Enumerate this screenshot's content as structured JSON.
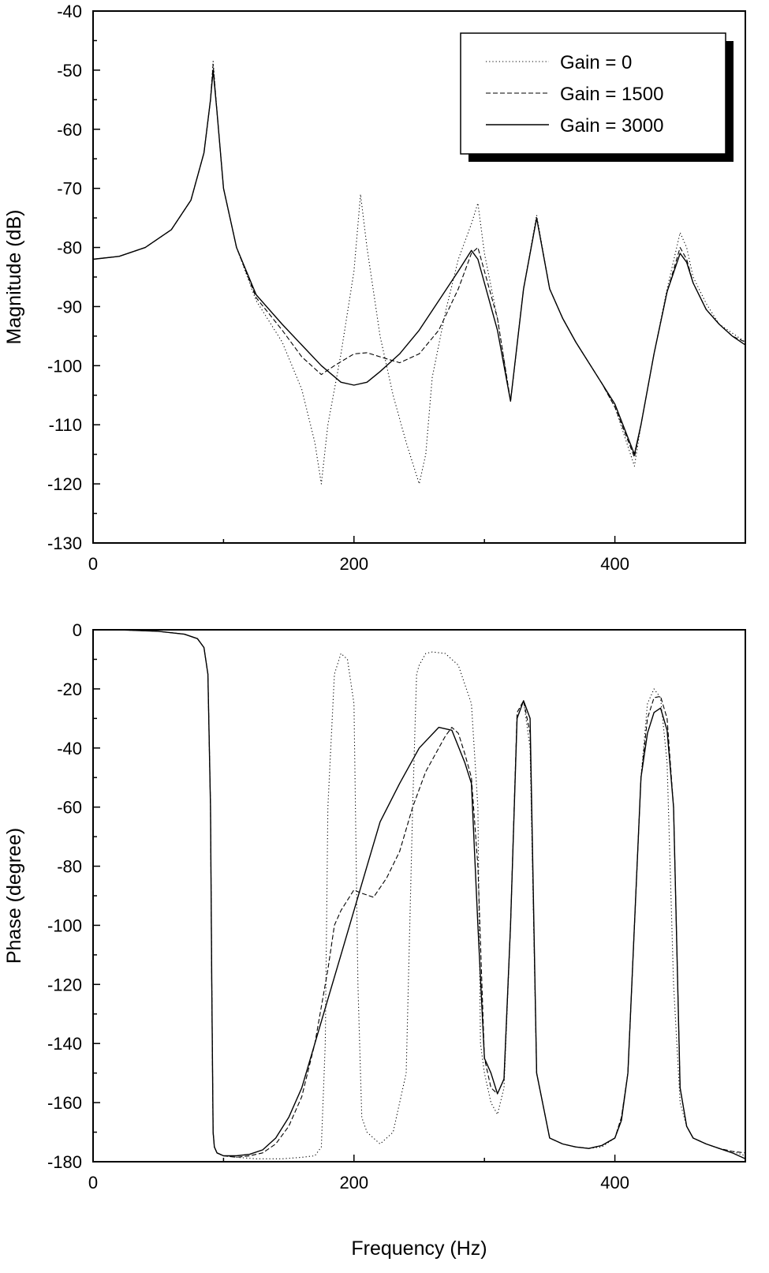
{
  "chart_data": [
    {
      "type": "line",
      "title": "",
      "xlabel": "",
      "ylabel": "Magnitude (dB)",
      "xlim": [
        0,
        500
      ],
      "ylim": [
        -130,
        -40
      ],
      "xticks": [
        0,
        200,
        400
      ],
      "yticks": [
        -40,
        -50,
        -60,
        -70,
        -80,
        -90,
        -100,
        -110,
        -120,
        -130
      ],
      "grid": false,
      "legend_position": "top-right",
      "series": [
        {
          "name": "Gain = 0",
          "style": "dotted",
          "x": [
            0,
            20,
            40,
            60,
            75,
            85,
            90,
            92,
            95,
            100,
            110,
            125,
            145,
            160,
            170,
            175,
            180,
            190,
            200,
            205,
            210,
            220,
            230,
            240,
            250,
            255,
            260,
            270,
            280,
            290,
            295,
            300,
            310,
            320,
            330,
            340,
            350,
            360,
            370,
            390,
            400,
            415,
            420,
            430,
            440,
            450,
            455,
            460,
            470,
            480,
            490,
            500
          ],
          "y": [
            -82,
            -81.5,
            -80,
            -77,
            -72,
            -64,
            -55,
            -48.5,
            -57,
            -70,
            -80,
            -89,
            -96,
            -104,
            -113,
            -120,
            -110,
            -98,
            -84,
            -71,
            -80,
            -95,
            -105,
            -113,
            -120,
            -115,
            -102,
            -91,
            -82,
            -76,
            -72.5,
            -81,
            -92,
            -106,
            -87,
            -74.5,
            -87,
            -92,
            -96,
            -103,
            -107,
            -117,
            -110,
            -98,
            -87,
            -77.5,
            -80,
            -85,
            -89.5,
            -93,
            -94.5,
            -96
          ]
        },
        {
          "name": "Gain = 1500",
          "style": "dashed",
          "x": [
            0,
            20,
            40,
            60,
            75,
            85,
            90,
            92,
            95,
            100,
            110,
            125,
            145,
            160,
            175,
            185,
            200,
            210,
            220,
            235,
            250,
            265,
            280,
            290,
            295,
            300,
            310,
            320,
            330,
            340,
            350,
            360,
            370,
            390,
            400,
            415,
            420,
            430,
            440,
            450,
            455,
            460,
            470,
            480,
            490,
            500
          ],
          "y": [
            -82,
            -81.5,
            -80,
            -77,
            -72,
            -64,
            -55,
            -49,
            -57,
            -70,
            -80,
            -88.5,
            -94,
            -98.5,
            -101.5,
            -100,
            -98,
            -97.8,
            -98.5,
            -99.5,
            -98,
            -94,
            -87,
            -81,
            -80,
            -84,
            -92,
            -106,
            -87,
            -75,
            -87,
            -92,
            -96,
            -103,
            -107,
            -115.5,
            -110,
            -98,
            -87.5,
            -80,
            -82,
            -86,
            -90.5,
            -93,
            -95,
            -96
          ]
        },
        {
          "name": "Gain = 3000",
          "style": "solid",
          "x": [
            0,
            20,
            40,
            60,
            75,
            85,
            90,
            92,
            95,
            100,
            110,
            125,
            145,
            160,
            175,
            190,
            200,
            210,
            220,
            235,
            250,
            265,
            280,
            290,
            295,
            300,
            310,
            320,
            330,
            340,
            350,
            360,
            370,
            390,
            400,
            415,
            420,
            430,
            440,
            450,
            455,
            460,
            470,
            480,
            490,
            500
          ],
          "y": [
            -82,
            -81.5,
            -80,
            -77,
            -72,
            -64,
            -55,
            -50,
            -57,
            -70,
            -80,
            -88,
            -93,
            -96.5,
            -100,
            -102.8,
            -103.3,
            -102.8,
            -101,
            -98,
            -94,
            -89,
            -84,
            -80.5,
            -82,
            -86,
            -94,
            -106,
            -87,
            -75,
            -87,
            -92,
            -96,
            -103,
            -106.5,
            -115,
            -110,
            -98,
            -87.5,
            -81,
            -82.5,
            -86,
            -90.5,
            -93,
            -95,
            -96.5
          ]
        }
      ]
    },
    {
      "type": "line",
      "title": "",
      "xlabel": "Frequency (Hz)",
      "ylabel": "Phase (degree)",
      "xlim": [
        0,
        500
      ],
      "ylim": [
        -180,
        0
      ],
      "xticks": [
        0,
        200,
        400
      ],
      "yticks": [
        0,
        -20,
        -40,
        -60,
        -80,
        -100,
        -120,
        -140,
        -160,
        -180
      ],
      "grid": false,
      "series": [
        {
          "name": "Gain = 0",
          "style": "dotted",
          "x": [
            20,
            50,
            70,
            80,
            85,
            88,
            90,
            91,
            92,
            93,
            95,
            100,
            110,
            125,
            145,
            160,
            170,
            175,
            178,
            180,
            185,
            190,
            195,
            200,
            203,
            206,
            210,
            220,
            230,
            240,
            245,
            248,
            250,
            255,
            260,
            270,
            280,
            290,
            295,
            297,
            300,
            305,
            310,
            315,
            320,
            325,
            330,
            335,
            340,
            350,
            360,
            370,
            380,
            390,
            400,
            405,
            410,
            415,
            420,
            425,
            430,
            435,
            440,
            445,
            450,
            455,
            460,
            470,
            480,
            490,
            500
          ],
          "y": [
            0,
            -0.5,
            -1.5,
            -3,
            -6,
            -15,
            -60,
            -120,
            -170,
            -175,
            -177,
            -178,
            -178.5,
            -179,
            -179,
            -178.5,
            -178,
            -175,
            -140,
            -60,
            -15,
            -8,
            -10,
            -25,
            -120,
            -165,
            -170,
            -174,
            -170,
            -150,
            -60,
            -15,
            -12,
            -8,
            -7.5,
            -8,
            -12,
            -25,
            -60,
            -140,
            -150,
            -160,
            -164,
            -155,
            -100,
            -30,
            -24,
            -40,
            -150,
            -172,
            -174,
            -175,
            -175.5,
            -175,
            -172,
            -165,
            -150,
            -100,
            -50,
            -25,
            -20,
            -23,
            -45,
            -120,
            -160,
            -168,
            -172,
            -174,
            -175.5,
            -176.5,
            -178
          ]
        },
        {
          "name": "Gain = 1500",
          "style": "dashed",
          "x": [
            20,
            50,
            70,
            80,
            85,
            88,
            90,
            91,
            92,
            93,
            95,
            100,
            110,
            120,
            130,
            140,
            150,
            160,
            170,
            180,
            185,
            190,
            200,
            205,
            215,
            225,
            235,
            245,
            255,
            265,
            270,
            275,
            280,
            285,
            290,
            295,
            300,
            305,
            310,
            315,
            320,
            325,
            330,
            335,
            340,
            350,
            360,
            370,
            380,
            390,
            400,
            405,
            410,
            415,
            420,
            425,
            430,
            435,
            440,
            445,
            450,
            455,
            460,
            470,
            480,
            490,
            500
          ],
          "y": [
            0,
            -0.5,
            -1.5,
            -3,
            -6,
            -15,
            -60,
            -120,
            -170,
            -175,
            -177,
            -178,
            -178.5,
            -178,
            -177,
            -174,
            -168,
            -158,
            -140,
            -115,
            -100,
            -95,
            -88,
            -89,
            -90.5,
            -84,
            -75,
            -60,
            -48,
            -40,
            -36,
            -33,
            -35,
            -42,
            -50,
            -80,
            -145,
            -155,
            -157,
            -152,
            -100,
            -28,
            -24,
            -35,
            -150,
            -172,
            -174,
            -175,
            -175.5,
            -174.5,
            -172,
            -165,
            -150,
            -100,
            -50,
            -30,
            -23,
            -22.5,
            -30,
            -60,
            -155,
            -168,
            -172,
            -174,
            -175.5,
            -176.5,
            -177
          ]
        },
        {
          "name": "Gain = 3000",
          "style": "solid",
          "x": [
            20,
            50,
            70,
            80,
            85,
            88,
            90,
            91,
            92,
            93,
            95,
            100,
            110,
            120,
            130,
            140,
            150,
            160,
            170,
            180,
            190,
            200,
            210,
            220,
            235,
            250,
            265,
            275,
            285,
            290,
            295,
            300,
            305,
            310,
            315,
            320,
            325,
            330,
            335,
            340,
            350,
            360,
            370,
            380,
            390,
            400,
            405,
            410,
            415,
            420,
            425,
            430,
            435,
            440,
            445,
            450,
            455,
            460,
            470,
            480,
            490,
            500
          ],
          "y": [
            0,
            -0.5,
            -1.5,
            -3,
            -6,
            -15,
            -60,
            -120,
            -170,
            -175,
            -177,
            -178,
            -178,
            -177.5,
            -176,
            -172,
            -165,
            -155,
            -140,
            -125,
            -110,
            -95,
            -80,
            -65,
            -52,
            -40,
            -33,
            -34,
            -45,
            -52,
            -100,
            -145,
            -150,
            -157,
            -152,
            -100,
            -30,
            -24,
            -30,
            -150,
            -172,
            -174,
            -175,
            -175.5,
            -174.5,
            -172,
            -166,
            -150,
            -100,
            -50,
            -35,
            -28,
            -26.5,
            -34,
            -60,
            -155,
            -168,
            -172,
            -174,
            -175.5,
            -177,
            -179
          ]
        }
      ]
    }
  ]
}
